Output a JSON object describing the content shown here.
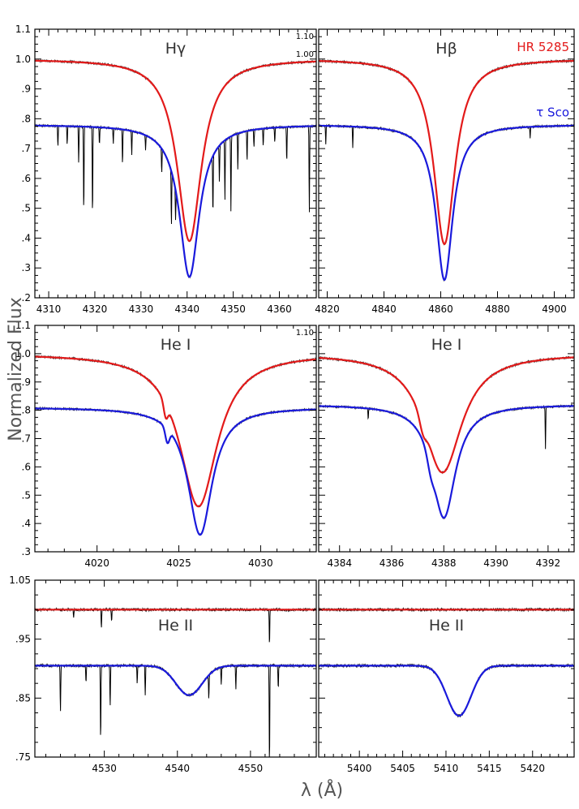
{
  "figure": {
    "xlabel": "λ (Å)",
    "ylabel": "Normalized Flux"
  },
  "colors": {
    "star_red": "#e31a1a",
    "star_blue": "#1a1adc",
    "observed": "#000000"
  },
  "chart_data": [
    {
      "type": "line",
      "panel": "top-left",
      "title": "Hγ",
      "corner_labels": [
        "1.10",
        "1.00"
      ],
      "xlim": [
        4307,
        4368
      ],
      "ylim": [
        0.2,
        1.1
      ],
      "xticks": [
        4310,
        4320,
        4330,
        4340,
        4350,
        4360
      ],
      "xticklabels": [
        "4310",
        "4320",
        "4330",
        "4340",
        "4350",
        "4360"
      ],
      "yticks": [
        0.2,
        0.3,
        0.4,
        0.5,
        0.6,
        0.7,
        0.8,
        0.9,
        1.0,
        1.1
      ],
      "yticklabels": [
        ".2",
        ".3",
        ".4",
        ".5",
        ".6",
        ".7",
        ".8",
        ".9",
        "1.0",
        "1.1"
      ],
      "profile_shape": "lorentz",
      "series": [
        {
          "star": "red",
          "continuum": 1.0,
          "center": 4340.5,
          "min": 0.39,
          "width": 3.2
        },
        {
          "star": "blue",
          "continuum": 0.78,
          "center": 4340.5,
          "min": 0.27,
          "width": 2.6,
          "metal_lines": [
            [
              4312,
              0.07
            ],
            [
              4314,
              0.06
            ],
            [
              4316.5,
              0.12
            ],
            [
              4317.6,
              0.29
            ],
            [
              4319.5,
              0.3
            ],
            [
              4321,
              0.06
            ],
            [
              4324,
              0.05
            ],
            [
              4326,
              0.12
            ],
            [
              4328,
              0.08
            ],
            [
              4331,
              0.05
            ],
            [
              4334.5,
              0.08
            ],
            [
              4336.6,
              0.18
            ],
            [
              4337.5,
              0.1
            ],
            [
              4345.6,
              0.2
            ],
            [
              4347,
              0.12
            ],
            [
              4348.2,
              0.2
            ],
            [
              4349.5,
              0.25
            ],
            [
              4351,
              0.12
            ],
            [
              4353,
              0.1
            ],
            [
              4354.5,
              0.06
            ],
            [
              4356.5,
              0.06
            ],
            [
              4359,
              0.05
            ],
            [
              4361.6,
              0.12
            ],
            [
              4366.5,
              0.29
            ]
          ]
        }
      ],
      "labels": []
    },
    {
      "type": "line",
      "panel": "top-right",
      "title": "Hβ",
      "xlim": [
        4817,
        4907
      ],
      "ylim": [
        0.2,
        1.1
      ],
      "xticks": [
        4820,
        4840,
        4860,
        4880,
        4900
      ],
      "xticklabels": [
        "4820",
        "4840",
        "4860",
        "4880",
        "4900"
      ],
      "yticks": [
        0.2,
        0.3,
        0.4,
        0.5,
        0.6,
        0.7,
        0.8,
        0.9,
        1.0,
        1.1
      ],
      "yticklabels": [],
      "profile_shape": "lorentz",
      "series": [
        {
          "star": "red",
          "continuum": 1.0,
          "center": 4861.3,
          "min": 0.38,
          "width": 4.5
        },
        {
          "star": "blue",
          "continuum": 0.78,
          "center": 4861.3,
          "min": 0.26,
          "width": 3.6,
          "metal_lines": [
            [
              4819.5,
              0.06
            ],
            [
              4829,
              0.07
            ],
            [
              4891.5,
              0.04
            ]
          ]
        }
      ],
      "labels": [
        {
          "text": "HR 5285",
          "star": "red"
        },
        {
          "text": "τ Sco",
          "star": "blue"
        }
      ]
    },
    {
      "type": "line",
      "panel": "middle-left",
      "title": "He I",
      "corner_labels": [
        "1.10"
      ],
      "xlim": [
        4016.2,
        4033.4
      ],
      "ylim": [
        0.3,
        1.1
      ],
      "xticks": [
        4020,
        4025,
        4030
      ],
      "xticklabels": [
        "4020",
        "4025",
        "4030"
      ],
      "yticks": [
        0.3,
        0.4,
        0.5,
        0.6,
        0.7,
        0.8,
        0.9,
        1.0,
        1.1
      ],
      "yticklabels": [
        ".3",
        ".4",
        ".5",
        ".6",
        ".7",
        ".8",
        ".9",
        "1.0",
        "1.1"
      ],
      "profile_shape": "lorentz",
      "series": [
        {
          "star": "red",
          "continuum": 1.0,
          "center": 4026.2,
          "min": 0.46,
          "width": 1.4,
          "bump": [
            4024.2,
            0.05
          ]
        },
        {
          "star": "blue",
          "continuum": 0.81,
          "center": 4026.3,
          "min": 0.36,
          "width": 0.9,
          "bump": [
            4024.3,
            0.05
          ]
        }
      ],
      "labels": []
    },
    {
      "type": "line",
      "panel": "middle-right",
      "title": "He I",
      "xlim": [
        4383.2,
        4393
      ],
      "ylim": [
        0.3,
        1.1
      ],
      "xticks": [
        4384,
        4386,
        4388,
        4390,
        4392
      ],
      "xticklabels": [
        "4384",
        "4386",
        "4388",
        "4390",
        "4392"
      ],
      "yticks": [
        0.3,
        0.4,
        0.5,
        0.6,
        0.7,
        0.8,
        0.9,
        1.0,
        1.1
      ],
      "yticklabels": [],
      "profile_shape": "lorentz",
      "series": [
        {
          "star": "red",
          "continuum": 1.0,
          "center": 4387.95,
          "min": 0.58,
          "width": 0.9,
          "bump": [
            4387.2,
            0.04
          ]
        },
        {
          "star": "blue",
          "continuum": 0.82,
          "center": 4388.0,
          "min": 0.42,
          "width": 0.55,
          "bump": [
            4387.5,
            0.04
          ],
          "metal_lines": [
            [
              4385.1,
              0.04
            ],
            [
              4391.9,
              0.15
            ]
          ]
        }
      ],
      "labels": []
    },
    {
      "type": "line",
      "panel": "bottom-left",
      "title": "He II",
      "xlim": [
        4520.5,
        4559
      ],
      "ylim": [
        0.75,
        1.05
      ],
      "xticks": [
        4530,
        4540,
        4550
      ],
      "xticklabels": [
        "4530",
        "4540",
        "4550"
      ],
      "yticks": [
        0.75,
        0.85,
        0.95,
        1.05
      ],
      "yticklabels": [
        ".75",
        ".85",
        ".95",
        "1.05"
      ],
      "profile_shape": "gauss",
      "series": [
        {
          "star": "red",
          "continuum": 1.0,
          "center": 4541.6,
          "min": 1.0,
          "width": 1.0,
          "metal_lines": [
            [
              4525.8,
              0.015
            ],
            [
              4529.6,
              0.03
            ],
            [
              4531,
              0.02
            ],
            [
              4552.6,
              0.06
            ]
          ]
        },
        {
          "star": "blue",
          "continuum": 0.905,
          "center": 4541.6,
          "min": 0.855,
          "width": 1.8,
          "metal_lines": [
            [
              4524,
              0.08
            ],
            [
              4527.5,
              0.03
            ],
            [
              4529.5,
              0.13
            ],
            [
              4530.8,
              0.07
            ],
            [
              4534.5,
              0.03
            ],
            [
              4535.6,
              0.05
            ],
            [
              4544.3,
              0.04
            ],
            [
              4546,
              0.03
            ],
            [
              4548,
              0.04
            ],
            [
              4552.6,
              0.17
            ],
            [
              4553.8,
              0.04
            ]
          ]
        }
      ],
      "labels": []
    },
    {
      "type": "line",
      "panel": "bottom-right",
      "title": "He II",
      "xlim": [
        5395.3,
        5424.8
      ],
      "ylim": [
        0.75,
        1.05
      ],
      "xticks": [
        5400,
        5405,
        5410,
        5415,
        5420
      ],
      "xticklabels": [
        "5400",
        "5405",
        "5410",
        "5415",
        "5420"
      ],
      "yticks": [
        0.75,
        0.85,
        0.95,
        1.05
      ],
      "yticklabels": [],
      "profile_shape": "gauss",
      "series": [
        {
          "star": "red",
          "continuum": 1.0,
          "center": 5411.5,
          "min": 1.0,
          "width": 1.0
        },
        {
          "star": "blue",
          "continuum": 0.905,
          "center": 5411.5,
          "min": 0.82,
          "width": 1.4
        }
      ],
      "labels": []
    }
  ]
}
